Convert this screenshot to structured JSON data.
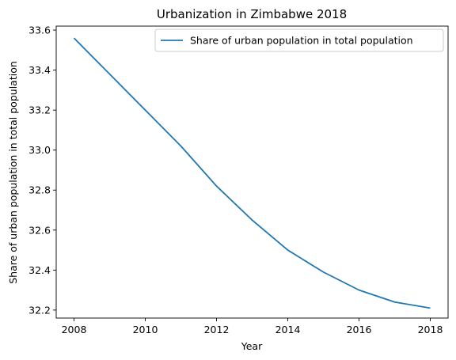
{
  "chart_data": {
    "type": "line",
    "title": "Urbanization in Zimbabwe 2018",
    "xlabel": "Year",
    "ylabel": "Share of urban population in total population",
    "xlim": [
      2007.5,
      2018.5
    ],
    "ylim": [
      32.16,
      33.62
    ],
    "x_ticks": [
      2008,
      2010,
      2012,
      2014,
      2016,
      2018
    ],
    "y_ticks": [
      32.2,
      32.4,
      32.6,
      32.8,
      33.0,
      33.2,
      33.4,
      33.6
    ],
    "grid": false,
    "legend_position": "top-right",
    "x": [
      2008,
      2009,
      2010,
      2011,
      2012,
      2013,
      2014,
      2015,
      2016,
      2017,
      2018
    ],
    "series": [
      {
        "name": "Share of urban population in total population",
        "color": "#1f77b4",
        "values": [
          33.56,
          33.38,
          33.2,
          33.02,
          32.82,
          32.65,
          32.5,
          32.39,
          32.3,
          32.24,
          32.21
        ]
      }
    ]
  }
}
